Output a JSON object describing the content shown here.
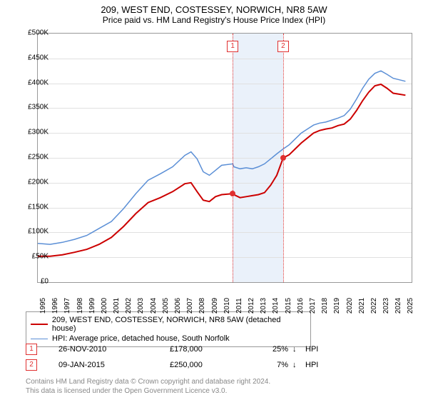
{
  "title": "209, WEST END, COSTESSEY, NORWICH, NR8 5AW",
  "subtitle": "Price paid vs. HM Land Registry's House Price Index (HPI)",
  "chart": {
    "type": "line",
    "background_color": "#ffffff",
    "grid_color": "#e0e0e0",
    "border_color": "#999999",
    "y": {
      "min": 0,
      "max": 500000,
      "step": 50000,
      "prefix": "£",
      "ticks": [
        "£0",
        "£50K",
        "£100K",
        "£150K",
        "£200K",
        "£250K",
        "£300K",
        "£350K",
        "£400K",
        "£450K",
        "£500K"
      ]
    },
    "x": {
      "min": 1995,
      "max": 2025.5,
      "labels": [
        1995,
        1996,
        1997,
        1998,
        1999,
        2000,
        2001,
        2002,
        2003,
        2004,
        2005,
        2006,
        2007,
        2008,
        2009,
        2010,
        2011,
        2012,
        2013,
        2014,
        2015,
        2016,
        2017,
        2018,
        2019,
        2020,
        2021,
        2022,
        2023,
        2024,
        2025
      ]
    },
    "shaded": {
      "start": 2010.9,
      "end": 2015.02,
      "color": "#eaf1fa"
    },
    "markers": [
      {
        "num": "1",
        "x": 2010.9,
        "y": 178000,
        "box_top_y": 485000
      },
      {
        "num": "2",
        "x": 2015.02,
        "y": 250000,
        "box_top_y": 485000
      }
    ],
    "series": [
      {
        "name": "209, WEST END, COSTESSEY, NORWICH, NR8 5AW (detached house)",
        "color": "#cc0000",
        "width": 2,
        "points": [
          [
            1995,
            52000
          ],
          [
            1996,
            52000
          ],
          [
            1997,
            55000
          ],
          [
            1998,
            60000
          ],
          [
            1999,
            66000
          ],
          [
            2000,
            76000
          ],
          [
            2001,
            90000
          ],
          [
            2002,
            112000
          ],
          [
            2003,
            138000
          ],
          [
            2004,
            160000
          ],
          [
            2005,
            170000
          ],
          [
            2006,
            182000
          ],
          [
            2007,
            198000
          ],
          [
            2007.5,
            200000
          ],
          [
            2008,
            182000
          ],
          [
            2008.5,
            165000
          ],
          [
            2009,
            162000
          ],
          [
            2009.5,
            172000
          ],
          [
            2010,
            176000
          ],
          [
            2010.9,
            178000
          ],
          [
            2011,
            176000
          ],
          [
            2011.5,
            170000
          ],
          [
            2012,
            172000
          ],
          [
            2012.5,
            174000
          ],
          [
            2013,
            176000
          ],
          [
            2013.5,
            180000
          ],
          [
            2014,
            195000
          ],
          [
            2014.5,
            215000
          ],
          [
            2015.02,
            250000
          ],
          [
            2015.5,
            256000
          ],
          [
            2016,
            268000
          ],
          [
            2016.5,
            280000
          ],
          [
            2017,
            290000
          ],
          [
            2017.5,
            300000
          ],
          [
            2018,
            305000
          ],
          [
            2018.5,
            308000
          ],
          [
            2019,
            310000
          ],
          [
            2019.5,
            315000
          ],
          [
            2020,
            318000
          ],
          [
            2020.5,
            328000
          ],
          [
            2021,
            345000
          ],
          [
            2021.5,
            365000
          ],
          [
            2022,
            382000
          ],
          [
            2022.5,
            395000
          ],
          [
            2023,
            398000
          ],
          [
            2023.5,
            390000
          ],
          [
            2024,
            380000
          ],
          [
            2024.5,
            378000
          ],
          [
            2025,
            376000
          ]
        ]
      },
      {
        "name": "HPI: Average price, detached house, South Norfolk",
        "color": "#5b8fd6",
        "width": 1.5,
        "points": [
          [
            1995,
            78000
          ],
          [
            1996,
            76000
          ],
          [
            1997,
            80000
          ],
          [
            1998,
            86000
          ],
          [
            1999,
            94000
          ],
          [
            2000,
            108000
          ],
          [
            2001,
            122000
          ],
          [
            2002,
            148000
          ],
          [
            2003,
            178000
          ],
          [
            2004,
            205000
          ],
          [
            2005,
            218000
          ],
          [
            2006,
            232000
          ],
          [
            2007,
            255000
          ],
          [
            2007.5,
            262000
          ],
          [
            2008,
            248000
          ],
          [
            2008.5,
            222000
          ],
          [
            2009,
            215000
          ],
          [
            2009.5,
            225000
          ],
          [
            2010,
            235000
          ],
          [
            2010.9,
            238000
          ],
          [
            2011,
            232000
          ],
          [
            2011.5,
            228000
          ],
          [
            2012,
            230000
          ],
          [
            2012.5,
            228000
          ],
          [
            2013,
            232000
          ],
          [
            2013.5,
            238000
          ],
          [
            2014,
            248000
          ],
          [
            2014.5,
            258000
          ],
          [
            2015.02,
            268000
          ],
          [
            2015.5,
            276000
          ],
          [
            2016,
            288000
          ],
          [
            2016.5,
            300000
          ],
          [
            2017,
            308000
          ],
          [
            2017.5,
            316000
          ],
          [
            2018,
            320000
          ],
          [
            2018.5,
            322000
          ],
          [
            2019,
            326000
          ],
          [
            2019.5,
            330000
          ],
          [
            2020,
            335000
          ],
          [
            2020.5,
            348000
          ],
          [
            2021,
            368000
          ],
          [
            2021.5,
            390000
          ],
          [
            2022,
            408000
          ],
          [
            2022.5,
            420000
          ],
          [
            2023,
            425000
          ],
          [
            2023.5,
            418000
          ],
          [
            2024,
            410000
          ],
          [
            2024.5,
            407000
          ],
          [
            2025,
            404000
          ]
        ]
      }
    ]
  },
  "legend": {
    "rows": [
      {
        "color": "#cc0000",
        "width": 2,
        "label": "209, WEST END, COSTESSEY, NORWICH, NR8 5AW (detached house)"
      },
      {
        "color": "#5b8fd6",
        "width": 1.5,
        "label": "HPI: Average price, detached house, South Norfolk"
      }
    ]
  },
  "sales": [
    {
      "num": "1",
      "date": "26-NOV-2010",
      "price": "£178,000",
      "pct": "25%",
      "arrow": "↓",
      "suffix": "HPI"
    },
    {
      "num": "2",
      "date": "09-JAN-2015",
      "price": "£250,000",
      "pct": "7%",
      "arrow": "↓",
      "suffix": "HPI"
    }
  ],
  "footer": {
    "line1": "Contains HM Land Registry data © Crown copyright and database right 2024.",
    "line2": "This data is licensed under the Open Government Licence v3.0."
  },
  "colors": {
    "marker_box_border": "#e03030",
    "text": "#000000",
    "footer_text": "#888888"
  }
}
